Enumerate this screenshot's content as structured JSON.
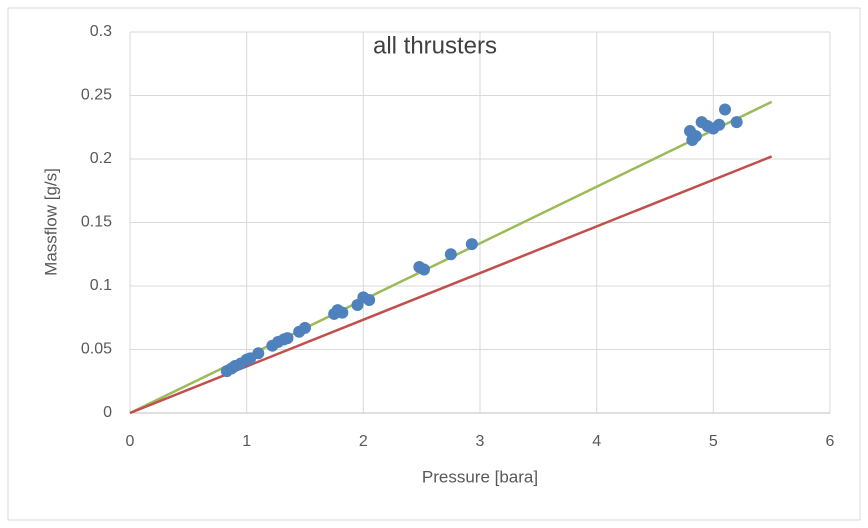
{
  "chart_data": {
    "type": "scatter",
    "title": "all thrusters",
    "x_label": "Pressure [bara]",
    "y_label": "Massflow [g/s]",
    "xlim": [
      0,
      6
    ],
    "ylim": [
      0,
      0.3
    ],
    "xticks": [
      0,
      1,
      2,
      3,
      4,
      5,
      6
    ],
    "yticks": [
      0,
      0.05,
      0.1,
      0.15,
      0.2,
      0.25,
      0.3
    ],
    "grid": true,
    "series": [
      {
        "type": "scatter",
        "color": "#4f81bd",
        "x": [
          0.83,
          0.87,
          0.9,
          0.95,
          1.0,
          1.03,
          1.1,
          1.22,
          1.27,
          1.32,
          1.35,
          1.45,
          1.5,
          1.75,
          1.78,
          1.82,
          1.95,
          2.0,
          2.05,
          2.48,
          2.52,
          2.75,
          2.93,
          4.8,
          4.82,
          4.85,
          4.9,
          4.95,
          5.0,
          5.05,
          5.1,
          5.2
        ],
        "values": [
          0.033,
          0.035,
          0.037,
          0.039,
          0.042,
          0.043,
          0.047,
          0.053,
          0.056,
          0.058,
          0.059,
          0.064,
          0.067,
          0.078,
          0.081,
          0.079,
          0.085,
          0.091,
          0.089,
          0.115,
          0.113,
          0.125,
          0.133,
          0.222,
          0.215,
          0.218,
          0.229,
          0.226,
          0.224,
          0.227,
          0.239,
          0.229
        ]
      },
      {
        "type": "line",
        "color": "#9bbb59",
        "x": [
          0,
          5.5
        ],
        "values": [
          0,
          0.245
        ]
      },
      {
        "type": "line",
        "color": "#c0504d",
        "x": [
          0,
          5.5
        ],
        "values": [
          0,
          0.202
        ]
      }
    ]
  }
}
